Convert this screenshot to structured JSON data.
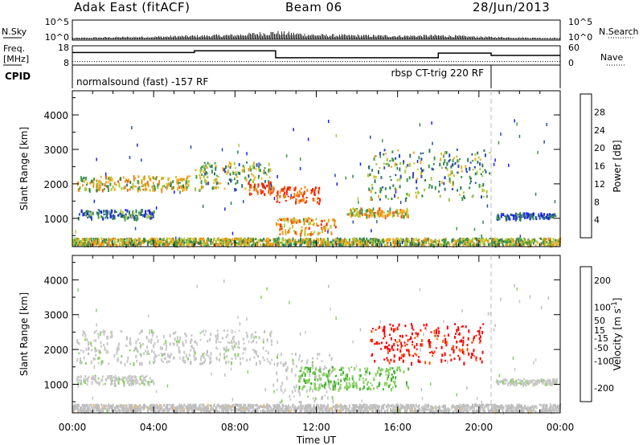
{
  "header": {
    "radar": "Adak East (fitACF)",
    "beam": "Beam 06",
    "date": "28/Jun/2013"
  },
  "panels": {
    "nsky_label": "N.Sky",
    "nsearch_label": "N.Search",
    "nsky_ticks": [
      "10^5",
      "10^0"
    ],
    "nsearch_ticks": [
      "10^5",
      "10^0"
    ],
    "freq_label_line1": "Freq.",
    "freq_label_line2": "[MHz]",
    "freq_ticks": [
      "18",
      "8"
    ],
    "nave_label": "Nave",
    "nave_ticks": [
      "60",
      "0"
    ],
    "cpid_label": "CPID",
    "cpid_segments": [
      {
        "text": "normalsound (fast) -157 RF",
        "start_hour": 0.0,
        "end_hour": 20.6
      },
      {
        "text": "rbsp CT-trig 220 RF",
        "start_hour": 14.4,
        "end_hour": 20.6
      }
    ]
  },
  "colors": {
    "power_scale": [
      "#1a1aff",
      "#2a48b8",
      "#2f7a5a",
      "#3e9a45",
      "#a8c838",
      "#f0b020",
      "#f08a10",
      "#f05a10",
      "#ff1a00"
    ],
    "velocity_scale": [
      "#ff0000",
      "#ff5500",
      "#ff9a10",
      "#f0c060",
      "#bdbdbd",
      "#c8c8c8",
      "#88d060",
      "#40b030",
      "#2a7a50",
      "#2050c0",
      "#0000d0"
    ]
  },
  "chart_data": [
    {
      "type": "line",
      "panel": "N.Sky / N.Search",
      "ylabel": "N.Sky",
      "y2label": "N.Search",
      "ylim": [
        0,
        5
      ],
      "series": [
        {
          "name": "N.Sky",
          "x": [
            0,
            2,
            4,
            6,
            8,
            10,
            12,
            14,
            16,
            18,
            20,
            22,
            24
          ],
          "values": [
            0.3,
            0.5,
            0.6,
            0.8,
            1.0,
            1.6,
            1.0,
            0.9,
            0.8,
            0.9,
            0.6,
            0.4,
            0.3
          ]
        }
      ]
    },
    {
      "type": "line",
      "panel": "Freq / Nave",
      "ylabel": "Freq. [MHz]",
      "y2label": "Nave",
      "ylim": [
        8,
        18
      ],
      "y2lim": [
        0,
        60
      ],
      "series": [
        {
          "name": "Freq.",
          "x": [
            0,
            6.0,
            6.0,
            10.0,
            10.0,
            18.0,
            18.0,
            20.6,
            20.6,
            24
          ],
          "values": [
            14.5,
            14.5,
            15.4,
            15.4,
            11.8,
            11.8,
            14.2,
            14.2,
            13.0,
            13.0
          ]
        },
        {
          "name": "Nave",
          "x": [
            0,
            24
          ],
          "values": [
            11,
            11
          ]
        }
      ]
    },
    {
      "type": "heatmap",
      "panel": "Power",
      "xlabel": "Time UT",
      "ylabel": "Slant Range [km]",
      "colorbar_label": "Power [dB]",
      "colorbar_ticks": [
        4,
        8,
        12,
        16,
        20,
        24,
        28
      ],
      "colorbar_range": [
        0,
        32
      ],
      "x_ticks": [
        "00:00",
        "04:00",
        "08:00",
        "12:00",
        "16:00",
        "20:00",
        "00:00"
      ],
      "xlim": [
        0,
        24
      ],
      "y_ticks": [
        1000,
        2000,
        3000,
        4000
      ],
      "ylim": [
        180,
        4700
      ],
      "features": [
        {
          "t_start": 0.2,
          "t_end": 5.8,
          "range_km": 2050,
          "width_km": 260,
          "power_db": 18
        },
        {
          "t_start": 0.2,
          "t_end": 4.0,
          "range_km": 1150,
          "width_km": 160,
          "power_db": 8
        },
        {
          "t_start": 6.0,
          "t_end": 9.8,
          "range_km": 2250,
          "width_km": 500,
          "power_db": 14
        },
        {
          "t_start": 8.6,
          "t_end": 9.9,
          "range_km": 1900,
          "width_km": 250,
          "power_db": 26
        },
        {
          "t_start": 10.0,
          "t_end": 12.2,
          "range_km": 1700,
          "width_km": 300,
          "power_db": 28
        },
        {
          "t_start": 10.0,
          "t_end": 13.0,
          "range_km": 800,
          "width_km": 300,
          "power_db": 22
        },
        {
          "t_start": 13.5,
          "t_end": 16.5,
          "range_km": 1200,
          "width_km": 150,
          "power_db": 20
        },
        {
          "t_start": 14.5,
          "t_end": 20.5,
          "range_km": 2300,
          "width_km": 900,
          "power_db": 12
        },
        {
          "t_start": 20.8,
          "t_end": 23.8,
          "range_km": 1100,
          "width_km": 100,
          "power_db": 6
        },
        {
          "t_start": 0.0,
          "t_end": 24.0,
          "range_km": 350,
          "width_km": 200,
          "power_db": 16
        }
      ]
    },
    {
      "type": "heatmap",
      "panel": "Velocity",
      "xlabel": "Time UT",
      "ylabel": "Slant Range [km]",
      "colorbar_label": "Velocity [m s^-1]",
      "colorbar_ticks": [
        -200,
        -100,
        -50,
        -15,
        15,
        50,
        100,
        200
      ],
      "colorbar_range": [
        -250,
        250
      ],
      "x_ticks": [
        "00:00",
        "04:00",
        "08:00",
        "12:00",
        "16:00",
        "20:00",
        "00:00"
      ],
      "xlim": [
        0,
        24
      ],
      "y_ticks": [
        1000,
        2000,
        3000,
        4000
      ],
      "ylim": [
        180,
        4700
      ],
      "features": [
        {
          "t_start": 0.2,
          "t_end": 9.8,
          "range_km": 2100,
          "width_km": 600,
          "velocity": 0
        },
        {
          "t_start": 0.2,
          "t_end": 4.0,
          "range_km": 1150,
          "width_km": 160,
          "velocity": 0
        },
        {
          "t_start": 10.0,
          "t_end": 12.8,
          "range_km": 1200,
          "width_km": 900,
          "velocity": 0
        },
        {
          "t_start": 11.0,
          "t_end": 16.5,
          "range_km": 1200,
          "width_km": 400,
          "velocity": 60
        },
        {
          "t_start": 14.6,
          "t_end": 20.2,
          "range_km": 2200,
          "width_km": 700,
          "velocity": -220
        },
        {
          "t_start": 20.8,
          "t_end": 23.8,
          "range_km": 1100,
          "width_km": 100,
          "velocity": 0
        },
        {
          "t_start": 0.0,
          "t_end": 24.0,
          "range_km": 350,
          "width_km": 200,
          "velocity": -40
        }
      ]
    }
  ]
}
